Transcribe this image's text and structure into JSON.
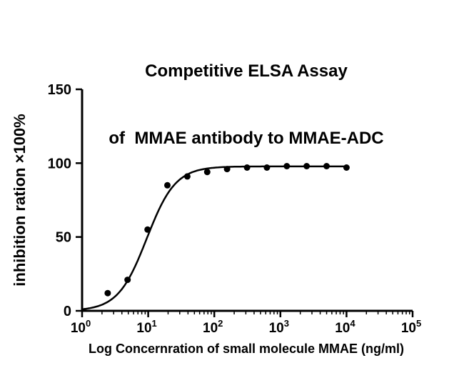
{
  "chart_data": {
    "type": "scatter",
    "title_line1": "Competitive ELSA Assay",
    "title_line2": "of  MMAE antibody to MMAE-ADC",
    "xlabel": "Log Concernration of small molecule MMAE (ng/ml)",
    "ylabel": "inhibition ration ×100%",
    "x_scale": "log10",
    "xlim": [
      1,
      100000
    ],
    "ylim": [
      0,
      150
    ],
    "y_ticks": [
      0,
      50,
      100,
      150
    ],
    "x_tick_base": "10",
    "x_major_ticks_exponents": [
      0,
      1,
      2,
      3,
      4,
      5
    ],
    "grid": false,
    "legend": false,
    "axis_color": "#000000",
    "line_color": "#000000",
    "point_color": "#000000",
    "points": [
      {
        "x": 2.44,
        "y": 12
      },
      {
        "x": 4.88,
        "y": 21
      },
      {
        "x": 9.77,
        "y": 55
      },
      {
        "x": 19.5,
        "y": 85
      },
      {
        "x": 39.1,
        "y": 91
      },
      {
        "x": 78.1,
        "y": 94
      },
      {
        "x": 156,
        "y": 96
      },
      {
        "x": 313,
        "y": 97
      },
      {
        "x": 625,
        "y": 97
      },
      {
        "x": 1250,
        "y": 98
      },
      {
        "x": 2500,
        "y": 98
      },
      {
        "x": 5000,
        "y": 98
      },
      {
        "x": 10000,
        "y": 97
      }
    ],
    "fit": {
      "model": "four-parameter logistic",
      "bottom": 0,
      "top": 97.8,
      "ec50": 9.5,
      "hill": 2.0,
      "curve_x_range": [
        1,
        10000
      ]
    }
  }
}
